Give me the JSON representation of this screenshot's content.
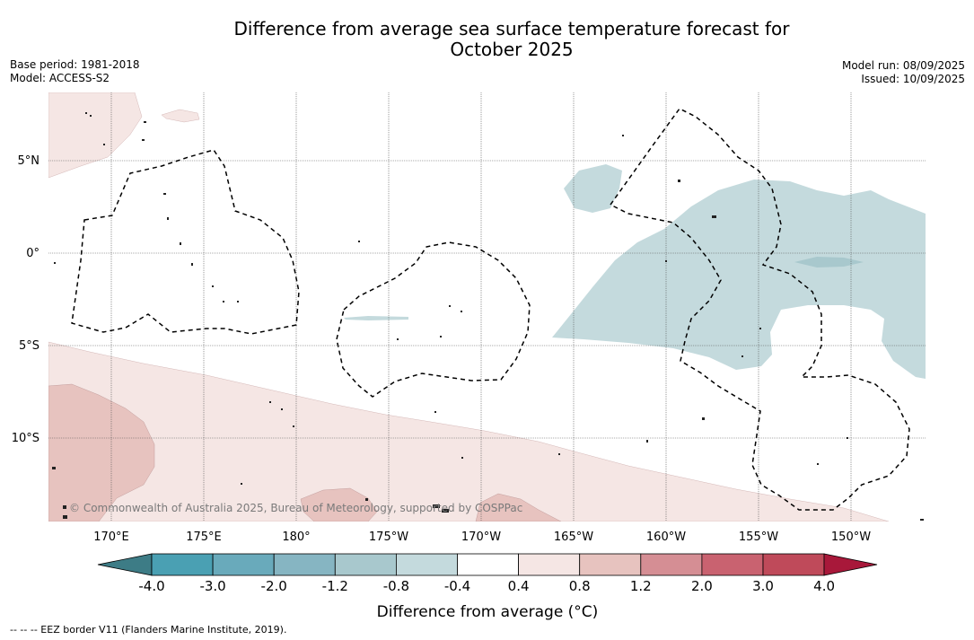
{
  "title_line1": "Difference from average sea surface temperature forecast for",
  "title_line2": "October 2025",
  "meta": {
    "base_period": "Base period: 1981-2018",
    "model": "Model: ACCESS-S2",
    "model_run": "Model run: 08/09/2025",
    "issued": "Issued: 10/09/2025"
  },
  "map": {
    "lat_labels": [
      "5°N",
      "0°",
      "5°S",
      "10°S"
    ],
    "lon_labels": [
      "170°E",
      "175°E",
      "180°",
      "175°W",
      "170°W",
      "165°W",
      "160°W",
      "155°W",
      "150°W"
    ],
    "copyright": "© Commonwealth of Australia 2025, Bureau of Meteorology, supported by COSPPac"
  },
  "colorbar": {
    "title": "Difference from average (°C)",
    "tick_labels": [
      "-4.0",
      "-3.0",
      "-2.0",
      "-1.2",
      "-0.8",
      "-0.4",
      "0.4",
      "0.8",
      "1.2",
      "2.0",
      "3.0",
      "4.0"
    ],
    "colors": [
      "#3d7c86",
      "#4aa0b3",
      "#69aabb",
      "#86b5c2",
      "#a8c8cd",
      "#c4dadd",
      "#ffffff",
      "#f5e6e4",
      "#e7c3bf",
      "#d58e94",
      "#c96270",
      "#bf4a5a",
      "#a8183a"
    ]
  },
  "footer": "--  --  -- EEZ border V11 (Flanders Marine Institute, 2019)."
}
